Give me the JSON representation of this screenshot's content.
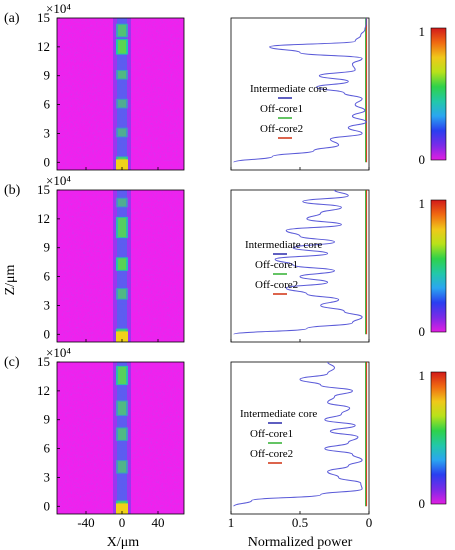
{
  "figure": {
    "y_axis_label": "Z/μm",
    "x_axis_label_left": "X/μm",
    "x_axis_label_right": "Normalized power",
    "z_scale_label": "×10⁴",
    "x_ticks_left": [
      "-40",
      "0",
      "40"
    ],
    "x_ticks_right": [
      "1",
      "0.5",
      "0"
    ],
    "colorbar_ticks": [
      "1",
      "0"
    ],
    "legend": [
      {
        "label": "Intermediate core",
        "color": "#1a1aa6"
      },
      {
        "label": "Off-core1",
        "color": "#22aa22"
      },
      {
        "label": "Off-core2",
        "color": "#cc2200"
      }
    ],
    "colors": {
      "field_background": "#ee22ee",
      "curve": "#5a5ad8",
      "colormap": [
        "#e21ee2",
        "#7a2be8",
        "#2a3ef0",
        "#2aa6f0",
        "#22c8a8",
        "#2fd24a",
        "#b8e21a",
        "#f0c81a",
        "#f06a12",
        "#d21a1a"
      ]
    }
  },
  "panels": [
    {
      "label": "(a)",
      "title": "",
      "y_ticks": [
        "0",
        "3",
        "6",
        "9",
        "12",
        "15"
      ]
    },
    {
      "label": "(b)",
      "title": "",
      "y_ticks": [
        "0",
        "3",
        "6",
        "9",
        "12",
        "15"
      ]
    },
    {
      "label": "(c)",
      "title": "",
      "y_ticks": [
        "0",
        "3",
        "6",
        "9",
        "12",
        "15"
      ]
    }
  ],
  "chart_data": [
    {
      "type": "line",
      "panel": "(a)",
      "x_label": "Normalized power",
      "y_label": "Z/μm (×10⁴)",
      "xlim": [
        1,
        0
      ],
      "ylim": [
        -0.8,
        15
      ],
      "series": [
        {
          "name": "Intermediate core",
          "z": [
            0,
            0.6,
            1.2,
            1.8,
            2.4,
            3.0,
            3.6,
            4.2,
            4.8,
            5.4,
            6.0,
            6.6,
            7.2,
            7.8,
            8.4,
            9.0,
            9.6,
            10.2,
            10.8,
            11.4,
            12.0,
            12.6,
            13.2,
            13.8,
            14.4,
            15.0
          ],
          "power": [
            0.98,
            0.7,
            0.4,
            0.22,
            0.28,
            0.05,
            0.15,
            0.02,
            0.12,
            0.03,
            0.1,
            0.05,
            0.18,
            0.38,
            0.15,
            0.36,
            0.1,
            0.12,
            0.05,
            0.5,
            0.72,
            0.1,
            0.06,
            0.03,
            0.02,
            0.02
          ]
        },
        {
          "name": "Off-core1",
          "z": [
            0,
            15
          ],
          "power": [
            0.01,
            0.01
          ]
        },
        {
          "name": "Off-core2",
          "z": [
            0,
            15
          ],
          "power": [
            0.01,
            0.01
          ]
        }
      ]
    },
    {
      "type": "line",
      "panel": "(b)",
      "x_label": "Normalized power",
      "y_label": "Z/μm (×10⁴)",
      "xlim": [
        1,
        0
      ],
      "ylim": [
        -0.8,
        15
      ],
      "series": [
        {
          "name": "Intermediate core",
          "z": [
            0,
            0.6,
            1.2,
            1.8,
            2.4,
            3.0,
            3.6,
            4.2,
            4.8,
            5.4,
            6.0,
            6.6,
            7.2,
            7.8,
            8.4,
            9.0,
            9.6,
            10.2,
            10.8,
            11.4,
            12.0,
            12.6,
            13.2,
            13.8,
            14.4,
            15.0
          ],
          "power": [
            0.98,
            0.45,
            0.12,
            0.05,
            0.18,
            0.35,
            0.22,
            0.45,
            0.6,
            0.3,
            0.5,
            0.25,
            0.55,
            0.68,
            0.3,
            0.55,
            0.25,
            0.5,
            0.6,
            0.2,
            0.45,
            0.35,
            0.2,
            0.48,
            0.15,
            0.25
          ]
        },
        {
          "name": "Off-core1",
          "z": [
            0,
            15
          ],
          "power": [
            0.01,
            0.01
          ]
        },
        {
          "name": "Off-core2",
          "z": [
            0,
            15
          ],
          "power": [
            0.01,
            0.01
          ]
        }
      ]
    },
    {
      "type": "line",
      "panel": "(c)",
      "x_label": "Normalized power",
      "y_label": "Z/μm (×10⁴)",
      "xlim": [
        1,
        0
      ],
      "ylim": [
        -0.8,
        15
      ],
      "series": [
        {
          "name": "Intermediate core",
          "z": [
            0,
            0.6,
            1.2,
            1.8,
            2.4,
            3.0,
            3.6,
            4.2,
            4.8,
            5.4,
            6.0,
            6.6,
            7.2,
            7.8,
            8.4,
            9.0,
            9.6,
            10.2,
            10.8,
            11.4,
            12.0,
            12.6,
            13.2,
            13.8,
            14.4,
            15.0
          ],
          "power": [
            0.98,
            0.85,
            0.35,
            0.05,
            0.06,
            0.22,
            0.3,
            0.15,
            0.05,
            0.12,
            0.32,
            0.15,
            0.08,
            0.28,
            0.1,
            0.32,
            0.2,
            0.14,
            0.3,
            0.25,
            0.12,
            0.35,
            0.5,
            0.3,
            0.25,
            0.3
          ]
        },
        {
          "name": "Off-core1",
          "z": [
            0,
            15
          ],
          "power": [
            0.01,
            0.01
          ]
        },
        {
          "name": "Off-core2",
          "z": [
            0,
            15
          ],
          "power": [
            0.01,
            0.01
          ]
        }
      ]
    }
  ]
}
